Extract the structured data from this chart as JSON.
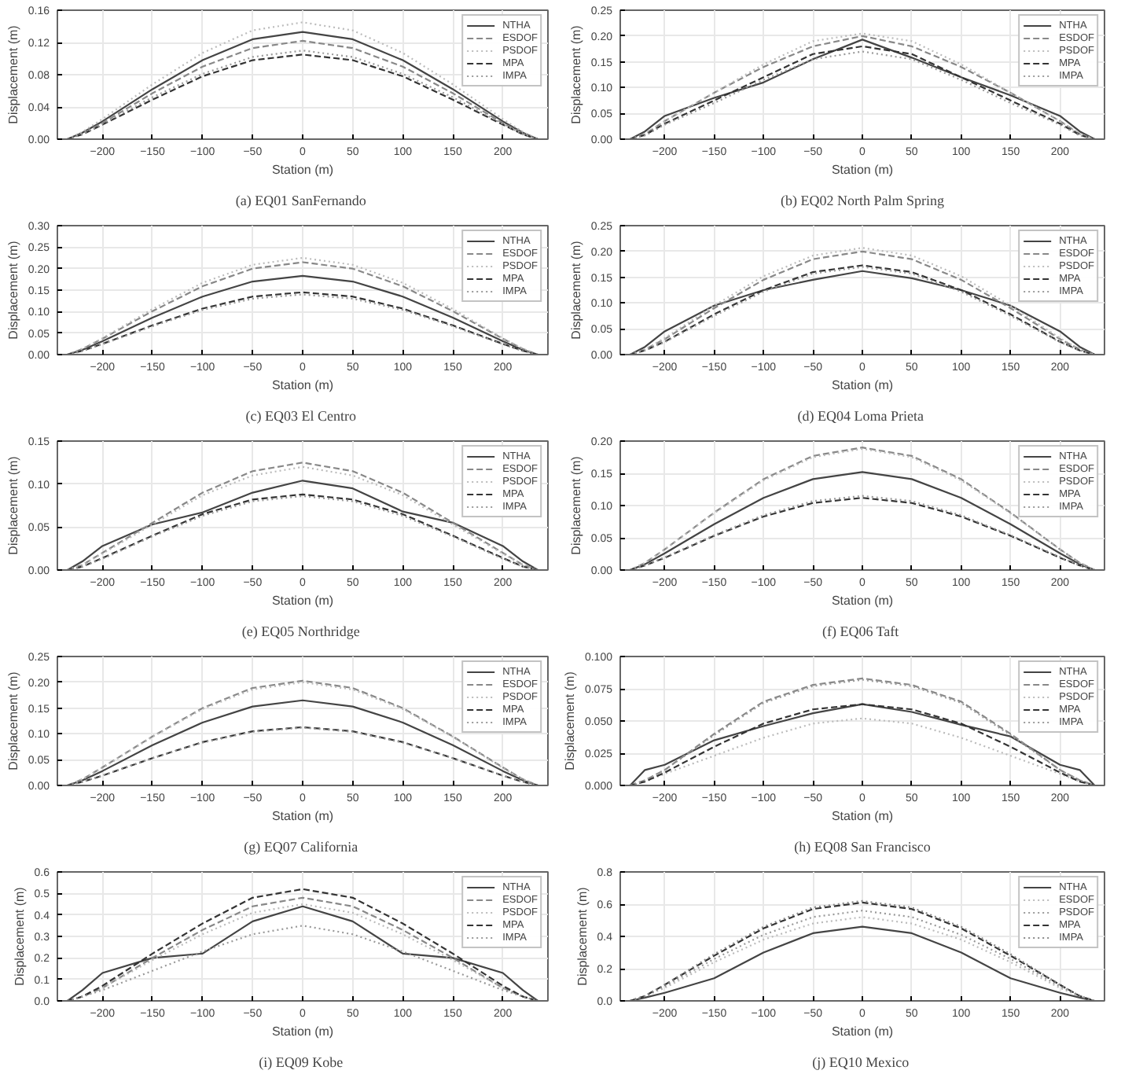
{
  "chart_data": [
    {
      "type": "line",
      "title": "(a)  EQ01 SanFernando",
      "xlabel": "Station (m)",
      "ylabel": "Displacement (m)",
      "x": [
        -235,
        -220,
        -200,
        -150,
        -100,
        -50,
        0,
        50,
        100,
        150,
        200,
        220,
        235
      ],
      "xlim": [
        -245,
        245
      ],
      "xticks": [
        -200,
        -150,
        -100,
        -50,
        0,
        50,
        100,
        150,
        200
      ],
      "ylim": [
        0,
        0.16
      ],
      "yticks": [
        {
          "value": 0,
          "label": "0.00"
        },
        {
          "value": 0.04,
          "label": "0.04"
        },
        {
          "value": 0.08,
          "label": "0.08"
        },
        {
          "value": 0.12,
          "label": "0.12"
        },
        {
          "value": 0.16,
          "label": "0.16"
        }
      ],
      "grid": true,
      "legend": "top right",
      "series": [
        {
          "name": "NTHA",
          "color": "#444444",
          "line_style": "solid",
          "values": [
            0,
            0.008,
            0.022,
            0.062,
            0.098,
            0.124,
            0.133,
            0.124,
            0.098,
            0.062,
            0.022,
            0.008,
            0
          ]
        },
        {
          "name": "ESDOF",
          "color": "#888888",
          "line_style": "dashed",
          "values": [
            0,
            0.007,
            0.02,
            0.057,
            0.09,
            0.113,
            0.122,
            0.113,
            0.09,
            0.057,
            0.02,
            0.007,
            0
          ]
        },
        {
          "name": "PSDOF",
          "color": "#bbbbbb",
          "line_style": "dotted",
          "values": [
            0,
            0.009,
            0.025,
            0.068,
            0.107,
            0.135,
            0.145,
            0.135,
            0.107,
            0.068,
            0.025,
            0.009,
            0
          ]
        },
        {
          "name": "MPA",
          "color": "#333333",
          "line_style": "dashed",
          "values": [
            0,
            0.006,
            0.018,
            0.049,
            0.078,
            0.098,
            0.105,
            0.098,
            0.078,
            0.049,
            0.018,
            0.006,
            0
          ]
        },
        {
          "name": "IMPA",
          "color": "#999999",
          "line_style": "dotted",
          "values": [
            0,
            0.006,
            0.019,
            0.052,
            0.081,
            0.102,
            0.11,
            0.102,
            0.081,
            0.052,
            0.019,
            0.006,
            0
          ]
        }
      ]
    },
    {
      "type": "line",
      "title": "(b) EQ02 North Palm Spring",
      "xlabel": "Station (m)",
      "ylabel": "Displacement (m)",
      "x": [
        -235,
        -220,
        -200,
        -150,
        -100,
        -50,
        0,
        50,
        100,
        150,
        200,
        220,
        235
      ],
      "xlim": [
        -245,
        245
      ],
      "xticks": [
        -200,
        -150,
        -100,
        -50,
        0,
        50,
        100,
        150,
        200
      ],
      "ylim": [
        0,
        0.25
      ],
      "yticks": [
        {
          "value": 0,
          "label": "0.00"
        },
        {
          "value": 0.05,
          "label": "0.05"
        },
        {
          "value": 0.1,
          "label": "0.10"
        },
        {
          "value": 0.15,
          "label": "0.15"
        },
        {
          "value": 0.2,
          "label": "0.20"
        },
        {
          "value": 0.25,
          "label": "0.25"
        }
      ],
      "grid": true,
      "legend": "top right",
      "series": [
        {
          "name": "NTHA",
          "color": "#444444",
          "line_style": "solid",
          "values": [
            0,
            0.015,
            0.045,
            0.08,
            0.11,
            0.155,
            0.193,
            0.158,
            0.12,
            0.085,
            0.045,
            0.015,
            0
          ]
        },
        {
          "name": "ESDOF",
          "color": "#888888",
          "line_style": "dashed",
          "values": [
            0,
            0.01,
            0.035,
            0.09,
            0.14,
            0.18,
            0.2,
            0.18,
            0.14,
            0.09,
            0.035,
            0.01,
            0
          ]
        },
        {
          "name": "PSDOF",
          "color": "#bbbbbb",
          "line_style": "dotted",
          "values": [
            0,
            0.01,
            0.035,
            0.09,
            0.145,
            0.19,
            0.205,
            0.19,
            0.145,
            0.09,
            0.035,
            0.01,
            0
          ]
        },
        {
          "name": "MPA",
          "color": "#333333",
          "line_style": "dashed",
          "values": [
            0,
            0.008,
            0.03,
            0.075,
            0.12,
            0.165,
            0.18,
            0.165,
            0.12,
            0.075,
            0.03,
            0.008,
            0
          ]
        },
        {
          "name": "IMPA",
          "color": "#999999",
          "line_style": "dotted",
          "values": [
            0,
            0.007,
            0.028,
            0.07,
            0.115,
            0.155,
            0.17,
            0.155,
            0.115,
            0.07,
            0.028,
            0.007,
            0
          ]
        }
      ]
    },
    {
      "type": "line",
      "title": "(c)  EQ03 El Centro",
      "xlabel": "Station (m)",
      "ylabel": "Displacement (m)",
      "x": [
        -235,
        -220,
        -200,
        -150,
        -100,
        -50,
        0,
        50,
        100,
        150,
        200,
        220,
        235
      ],
      "xlim": [
        -245,
        245
      ],
      "xticks": [
        -200,
        -150,
        -100,
        -50,
        0,
        50,
        100,
        150,
        200
      ],
      "ylim": [
        0,
        0.3
      ],
      "yticks": [
        {
          "value": 0,
          "label": "0.00"
        },
        {
          "value": 0.05,
          "label": "0.05"
        },
        {
          "value": 0.1,
          "label": "0.10"
        },
        {
          "value": 0.15,
          "label": "0.15"
        },
        {
          "value": 0.2,
          "label": "0.20"
        },
        {
          "value": 0.25,
          "label": "0.25"
        },
        {
          "value": 0.3,
          "label": "0.30"
        }
      ],
      "grid": true,
      "legend": "top right",
      "series": [
        {
          "name": "NTHA",
          "color": "#444444",
          "line_style": "solid",
          "values": [
            0,
            0.011,
            0.031,
            0.086,
            0.135,
            0.17,
            0.183,
            0.17,
            0.135,
            0.086,
            0.031,
            0.011,
            0
          ]
        },
        {
          "name": "ESDOF",
          "color": "#888888",
          "line_style": "dashed",
          "values": [
            0,
            0.013,
            0.037,
            0.101,
            0.159,
            0.2,
            0.215,
            0.2,
            0.159,
            0.101,
            0.037,
            0.013,
            0
          ]
        },
        {
          "name": "PSDOF",
          "color": "#bbbbbb",
          "line_style": "dotted",
          "values": [
            0,
            0.014,
            0.038,
            0.106,
            0.167,
            0.209,
            0.225,
            0.209,
            0.167,
            0.106,
            0.038,
            0.014,
            0
          ]
        },
        {
          "name": "MPA",
          "color": "#333333",
          "line_style": "dashed",
          "values": [
            0,
            0.009,
            0.025,
            0.068,
            0.107,
            0.135,
            0.145,
            0.135,
            0.107,
            0.068,
            0.025,
            0.009,
            0
          ]
        },
        {
          "name": "IMPA",
          "color": "#999999",
          "line_style": "dotted",
          "values": [
            0,
            0.008,
            0.024,
            0.066,
            0.104,
            0.13,
            0.14,
            0.13,
            0.104,
            0.066,
            0.024,
            0.008,
            0
          ]
        }
      ]
    },
    {
      "type": "line",
      "title": "(d)  EQ04 Loma Prieta",
      "xlabel": "Station (m)",
      "ylabel": "Displacement (m)",
      "x": [
        -235,
        -220,
        -200,
        -150,
        -100,
        -50,
        0,
        50,
        100,
        150,
        200,
        220,
        235
      ],
      "xlim": [
        -245,
        245
      ],
      "xticks": [
        -200,
        -150,
        -100,
        -50,
        0,
        50,
        100,
        150,
        200
      ],
      "ylim": [
        0,
        0.25
      ],
      "yticks": [
        {
          "value": 0,
          "label": "0.00"
        },
        {
          "value": 0.05,
          "label": "0.05"
        },
        {
          "value": 0.1,
          "label": "0.10"
        },
        {
          "value": 0.15,
          "label": "0.15"
        },
        {
          "value": 0.2,
          "label": "0.20"
        },
        {
          "value": 0.25,
          "label": "0.25"
        }
      ],
      "grid": true,
      "legend": "top right",
      "series": [
        {
          "name": "NTHA",
          "color": "#444444",
          "line_style": "solid",
          "values": [
            0,
            0.015,
            0.045,
            0.095,
            0.125,
            0.145,
            0.162,
            0.148,
            0.125,
            0.095,
            0.045,
            0.015,
            0
          ]
        },
        {
          "name": "ESDOF",
          "color": "#888888",
          "line_style": "dashed",
          "values": [
            0,
            0.01,
            0.03,
            0.09,
            0.145,
            0.185,
            0.2,
            0.185,
            0.145,
            0.09,
            0.03,
            0.01,
            0
          ]
        },
        {
          "name": "PSDOF",
          "color": "#bbbbbb",
          "line_style": "dotted",
          "values": [
            0,
            0.01,
            0.032,
            0.095,
            0.152,
            0.192,
            0.207,
            0.192,
            0.152,
            0.095,
            0.032,
            0.01,
            0
          ]
        },
        {
          "name": "MPA",
          "color": "#333333",
          "line_style": "dashed",
          "values": [
            0,
            0.008,
            0.025,
            0.078,
            0.125,
            0.16,
            0.173,
            0.16,
            0.125,
            0.078,
            0.025,
            0.008,
            0
          ]
        },
        {
          "name": "IMPA",
          "color": "#999999",
          "line_style": "dotted",
          "values": [
            0,
            0.008,
            0.024,
            0.075,
            0.122,
            0.157,
            0.17,
            0.157,
            0.122,
            0.075,
            0.024,
            0.008,
            0
          ]
        }
      ]
    },
    {
      "type": "line",
      "title": "(e)  EQ05 Northridge",
      "xlabel": "Station (m)",
      "ylabel": "Displacement (m)",
      "x": [
        -235,
        -220,
        -200,
        -150,
        -100,
        -50,
        0,
        50,
        100,
        150,
        200,
        220,
        235
      ],
      "xlim": [
        -245,
        245
      ],
      "xticks": [
        -200,
        -150,
        -100,
        -50,
        0,
        50,
        100,
        150,
        200
      ],
      "ylim": [
        0,
        0.15
      ],
      "yticks": [
        {
          "value": 0,
          "label": "0.00"
        },
        {
          "value": 0.05,
          "label": "0.05"
        },
        {
          "value": 0.1,
          "label": "0.10"
        },
        {
          "value": 0.15,
          "label": "0.15"
        }
      ],
      "grid": true,
      "legend": "top right",
      "series": [
        {
          "name": "NTHA",
          "color": "#444444",
          "line_style": "solid",
          "values": [
            0,
            0.01,
            0.028,
            0.053,
            0.067,
            0.09,
            0.104,
            0.095,
            0.068,
            0.055,
            0.028,
            0.01,
            0
          ]
        },
        {
          "name": "ESDOF",
          "color": "#888888",
          "line_style": "dashed",
          "values": [
            0,
            0.006,
            0.02,
            0.055,
            0.09,
            0.115,
            0.125,
            0.115,
            0.09,
            0.055,
            0.02,
            0.006,
            0
          ]
        },
        {
          "name": "PSDOF",
          "color": "#bbbbbb",
          "line_style": "dotted",
          "values": [
            0,
            0.006,
            0.019,
            0.053,
            0.087,
            0.11,
            0.12,
            0.11,
            0.087,
            0.053,
            0.019,
            0.006,
            0
          ]
        },
        {
          "name": "MPA",
          "color": "#333333",
          "line_style": "dashed",
          "values": [
            0,
            0.004,
            0.014,
            0.04,
            0.065,
            0.082,
            0.088,
            0.082,
            0.065,
            0.04,
            0.014,
            0.004,
            0
          ]
        },
        {
          "name": "IMPA",
          "color": "#999999",
          "line_style": "dotted",
          "values": [
            0,
            0.004,
            0.013,
            0.039,
            0.063,
            0.08,
            0.086,
            0.08,
            0.063,
            0.039,
            0.013,
            0.004,
            0
          ]
        }
      ]
    },
    {
      "type": "line",
      "title": "(f)  EQ06 Taft",
      "xlabel": "Station (m)",
      "ylabel": "Displacement (m)",
      "x": [
        -235,
        -220,
        -200,
        -150,
        -100,
        -50,
        0,
        50,
        100,
        150,
        200,
        220,
        235
      ],
      "xlim": [
        -245,
        245
      ],
      "xticks": [
        -200,
        -150,
        -100,
        -50,
        0,
        50,
        100,
        150,
        200
      ],
      "ylim": [
        0,
        0.2
      ],
      "yticks": [
        {
          "value": 0,
          "label": "0.00"
        },
        {
          "value": 0.05,
          "label": "0.05"
        },
        {
          "value": 0.1,
          "label": "0.10"
        },
        {
          "value": 0.15,
          "label": "0.15"
        },
        {
          "value": 0.2,
          "label": "0.20"
        }
      ],
      "grid": true,
      "legend": "top right",
      "series": [
        {
          "name": "NTHA",
          "color": "#444444",
          "line_style": "solid",
          "values": [
            0,
            0.009,
            0.026,
            0.071,
            0.112,
            0.141,
            0.152,
            0.141,
            0.112,
            0.071,
            0.026,
            0.009,
            0
          ]
        },
        {
          "name": "ESDOF",
          "color": "#888888",
          "line_style": "dashed",
          "values": [
            0,
            0.011,
            0.032,
            0.089,
            0.141,
            0.177,
            0.19,
            0.177,
            0.141,
            0.089,
            0.032,
            0.011,
            0
          ]
        },
        {
          "name": "PSDOF",
          "color": "#bbbbbb",
          "line_style": "dotted",
          "values": [
            0,
            0.011,
            0.032,
            0.088,
            0.139,
            0.175,
            0.188,
            0.175,
            0.139,
            0.088,
            0.032,
            0.011,
            0
          ]
        },
        {
          "name": "MPA",
          "color": "#333333",
          "line_style": "dashed",
          "values": [
            0,
            0.007,
            0.019,
            0.053,
            0.083,
            0.104,
            0.112,
            0.104,
            0.083,
            0.053,
            0.019,
            0.007,
            0
          ]
        },
        {
          "name": "IMPA",
          "color": "#999999",
          "line_style": "dotted",
          "values": [
            0,
            0.007,
            0.02,
            0.054,
            0.085,
            0.107,
            0.115,
            0.107,
            0.085,
            0.054,
            0.02,
            0.007,
            0
          ]
        }
      ]
    },
    {
      "type": "line",
      "title": "(g)  EQ07 California",
      "xlabel": "Station (m)",
      "ylabel": "Displacement (m)",
      "x": [
        -235,
        -220,
        -200,
        -150,
        -100,
        -50,
        0,
        50,
        100,
        150,
        200,
        220,
        235
      ],
      "xlim": [
        -245,
        245
      ],
      "xticks": [
        -200,
        -150,
        -100,
        -50,
        0,
        50,
        100,
        150,
        200
      ],
      "ylim": [
        0,
        0.25
      ],
      "yticks": [
        {
          "value": 0,
          "label": "0.00"
        },
        {
          "value": 0.05,
          "label": "0.05"
        },
        {
          "value": 0.1,
          "label": "0.10"
        },
        {
          "value": 0.15,
          "label": "0.15"
        },
        {
          "value": 0.2,
          "label": "0.20"
        },
        {
          "value": 0.25,
          "label": "0.25"
        }
      ],
      "grid": true,
      "legend": "top right",
      "series": [
        {
          "name": "NTHA",
          "color": "#444444",
          "line_style": "solid",
          "values": [
            0,
            0.01,
            0.028,
            0.078,
            0.122,
            0.153,
            0.165,
            0.153,
            0.122,
            0.078,
            0.028,
            0.01,
            0
          ]
        },
        {
          "name": "ESDOF",
          "color": "#888888",
          "line_style": "dashed",
          "values": [
            0,
            0.012,
            0.035,
            0.095,
            0.15,
            0.189,
            0.203,
            0.189,
            0.15,
            0.095,
            0.035,
            0.012,
            0
          ]
        },
        {
          "name": "PSDOF",
          "color": "#bbbbbb",
          "line_style": "dotted",
          "values": [
            0,
            0.012,
            0.034,
            0.094,
            0.148,
            0.186,
            0.2,
            0.186,
            0.148,
            0.094,
            0.034,
            0.012,
            0
          ]
        },
        {
          "name": "MPA",
          "color": "#333333",
          "line_style": "dashed",
          "values": [
            0,
            0.007,
            0.019,
            0.053,
            0.084,
            0.105,
            0.113,
            0.105,
            0.084,
            0.053,
            0.019,
            0.007,
            0
          ]
        },
        {
          "name": "IMPA",
          "color": "#999999",
          "line_style": "dotted",
          "values": [
            0,
            0.007,
            0.019,
            0.053,
            0.083,
            0.104,
            0.112,
            0.104,
            0.083,
            0.053,
            0.019,
            0.007,
            0
          ]
        }
      ]
    },
    {
      "type": "line",
      "title": "(h) EQ08 San Francisco",
      "xlabel": "Station (m)",
      "ylabel": "Displacement (m)",
      "x": [
        -235,
        -220,
        -200,
        -150,
        -100,
        -50,
        0,
        50,
        100,
        150,
        200,
        220,
        235
      ],
      "xlim": [
        -245,
        245
      ],
      "xticks": [
        -200,
        -150,
        -100,
        -50,
        0,
        50,
        100,
        150,
        200
      ],
      "ylim": [
        0,
        0.1
      ],
      "yticks": [
        {
          "value": 0,
          "label": "0.000"
        },
        {
          "value": 0.025,
          "label": "0.025"
        },
        {
          "value": 0.05,
          "label": "0.050"
        },
        {
          "value": 0.075,
          "label": "0.075"
        },
        {
          "value": 0.1,
          "label": "0.100"
        }
      ],
      "grid": true,
      "legend": "top right",
      "series": [
        {
          "name": "NTHA",
          "color": "#444444",
          "line_style": "solid",
          "values": [
            0,
            0.012,
            0.016,
            0.035,
            0.046,
            0.056,
            0.063,
            0.057,
            0.047,
            0.038,
            0.016,
            0.012,
            0
          ]
        },
        {
          "name": "ESDOF",
          "color": "#888888",
          "line_style": "dashed",
          "values": [
            0,
            0.004,
            0.012,
            0.04,
            0.065,
            0.078,
            0.083,
            0.078,
            0.065,
            0.04,
            0.012,
            0.004,
            0
          ]
        },
        {
          "name": "PSDOF",
          "color": "#bbbbbb",
          "line_style": "dotted",
          "values": [
            0,
            0.003,
            0.009,
            0.023,
            0.037,
            0.048,
            0.052,
            0.048,
            0.037,
            0.023,
            0.009,
            0.003,
            0
          ]
        },
        {
          "name": "MPA",
          "color": "#333333",
          "line_style": "dashed",
          "values": [
            0,
            0.003,
            0.01,
            0.03,
            0.048,
            0.059,
            0.063,
            0.059,
            0.048,
            0.03,
            0.01,
            0.003,
            0
          ]
        },
        {
          "name": "IMPA",
          "color": "#999999",
          "line_style": "dotted",
          "values": [
            0,
            0.004,
            0.012,
            0.039,
            0.064,
            0.077,
            0.082,
            0.077,
            0.064,
            0.039,
            0.012,
            0.004,
            0
          ]
        }
      ]
    },
    {
      "type": "line",
      "title": "(i)  EQ09 Kobe",
      "xlabel": "Station (m)",
      "ylabel": "Displacement (m)",
      "x": [
        -235,
        -220,
        -200,
        -150,
        -100,
        -50,
        0,
        50,
        100,
        150,
        200,
        220,
        235
      ],
      "xlim": [
        -245,
        245
      ],
      "xticks": [
        -200,
        -150,
        -100,
        -50,
        0,
        50,
        100,
        150,
        200
      ],
      "ylim": [
        0,
        0.6
      ],
      "yticks": [
        {
          "value": 0,
          "label": "0.0"
        },
        {
          "value": 0.1,
          "label": "0.1"
        },
        {
          "value": 0.2,
          "label": "0.2"
        },
        {
          "value": 0.3,
          "label": "0.3"
        },
        {
          "value": 0.4,
          "label": "0.4"
        },
        {
          "value": 0.5,
          "label": "0.5"
        },
        {
          "value": 0.6,
          "label": "0.6"
        }
      ],
      "grid": true,
      "legend": "top right",
      "series": [
        {
          "name": "NTHA",
          "color": "#444444",
          "line_style": "solid",
          "values": [
            0,
            0.05,
            0.13,
            0.2,
            0.22,
            0.37,
            0.44,
            0.37,
            0.22,
            0.2,
            0.13,
            0.05,
            0
          ]
        },
        {
          "name": "ESDOF",
          "color": "#888888",
          "line_style": "dashed",
          "values": [
            0,
            0.02,
            0.06,
            0.2,
            0.33,
            0.44,
            0.48,
            0.44,
            0.33,
            0.2,
            0.06,
            0.02,
            0
          ]
        },
        {
          "name": "PSDOF",
          "color": "#bbbbbb",
          "line_style": "dotted",
          "values": [
            0,
            0.02,
            0.06,
            0.19,
            0.31,
            0.41,
            0.45,
            0.41,
            0.31,
            0.19,
            0.06,
            0.02,
            0
          ]
        },
        {
          "name": "MPA",
          "color": "#333333",
          "line_style": "dashed",
          "values": [
            0,
            0.02,
            0.07,
            0.22,
            0.36,
            0.48,
            0.52,
            0.48,
            0.36,
            0.22,
            0.07,
            0.02,
            0
          ]
        },
        {
          "name": "IMPA",
          "color": "#999999",
          "line_style": "dotted",
          "values": [
            0,
            0.02,
            0.05,
            0.14,
            0.23,
            0.31,
            0.35,
            0.31,
            0.23,
            0.14,
            0.05,
            0.02,
            0
          ]
        }
      ]
    },
    {
      "type": "line",
      "title": "(j)  EQ10 Mexico",
      "xlabel": "Station (m)",
      "ylabel": "Displacement (m)",
      "x": [
        -235,
        -220,
        -200,
        -150,
        -100,
        -50,
        0,
        50,
        100,
        150,
        200,
        220,
        235
      ],
      "xlim": [
        -245,
        245
      ],
      "xticks": [
        -200,
        -150,
        -100,
        -50,
        0,
        50,
        100,
        150,
        200
      ],
      "ylim": [
        0,
        0.8
      ],
      "yticks": [
        {
          "value": 0,
          "label": "0.0"
        },
        {
          "value": 0.2,
          "label": "0.2"
        },
        {
          "value": 0.4,
          "label": "0.4"
        },
        {
          "value": 0.6,
          "label": "0.6"
        },
        {
          "value": 0.8,
          "label": "0.8"
        }
      ],
      "grid": true,
      "legend": "top right",
      "series": [
        {
          "name": "NTHA",
          "color": "#444444",
          "line_style": "solid",
          "values": [
            0,
            0.02,
            0.05,
            0.14,
            0.3,
            0.42,
            0.46,
            0.42,
            0.3,
            0.14,
            0.05,
            0.02,
            0
          ]
        },
        {
          "name": "ESDOF",
          "color": "#bbbbbb",
          "line_style": "dotted",
          "values": [
            0,
            0.03,
            0.08,
            0.24,
            0.38,
            0.48,
            0.52,
            0.48,
            0.38,
            0.24,
            0.08,
            0.03,
            0
          ]
        },
        {
          "name": "PSDOF",
          "color": "#999999",
          "line_style": "dotted",
          "values": [
            0,
            0.03,
            0.09,
            0.26,
            0.41,
            0.52,
            0.56,
            0.52,
            0.41,
            0.26,
            0.09,
            0.03,
            0
          ]
        },
        {
          "name": "MPA",
          "color": "#333333",
          "line_style": "dashed",
          "values": [
            0,
            0.03,
            0.1,
            0.28,
            0.45,
            0.57,
            0.61,
            0.57,
            0.45,
            0.28,
            0.1,
            0.03,
            0
          ]
        },
        {
          "name": "IMPA",
          "color": "#888888",
          "line_style": "dotted",
          "values": [
            0,
            0.03,
            0.1,
            0.29,
            0.46,
            0.58,
            0.62,
            0.58,
            0.46,
            0.29,
            0.1,
            0.03,
            0
          ]
        }
      ]
    }
  ]
}
